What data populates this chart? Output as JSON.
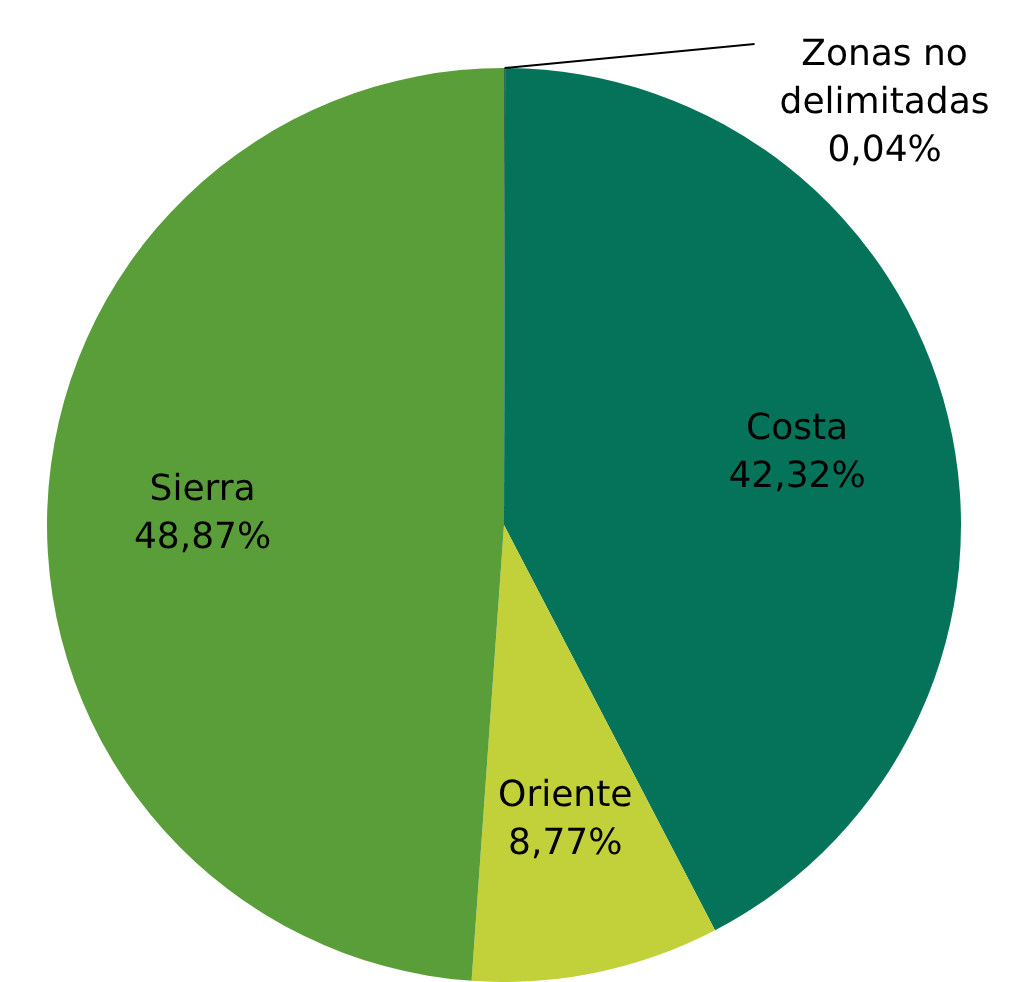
{
  "chart_data": {
    "type": "pie",
    "categories": [
      "Zonas no delimitadas",
      "Costa",
      "Oriente",
      "Sierra"
    ],
    "values": [
      0.04,
      42.32,
      8.77,
      48.87
    ],
    "colors": [
      "#2e6b4f",
      "#05735a",
      "#c2d13a",
      "#5a9e3a"
    ],
    "value_labels": [
      "0,04%",
      "42,32%",
      "8,77%",
      "48,87%"
    ],
    "legend": false
  }
}
